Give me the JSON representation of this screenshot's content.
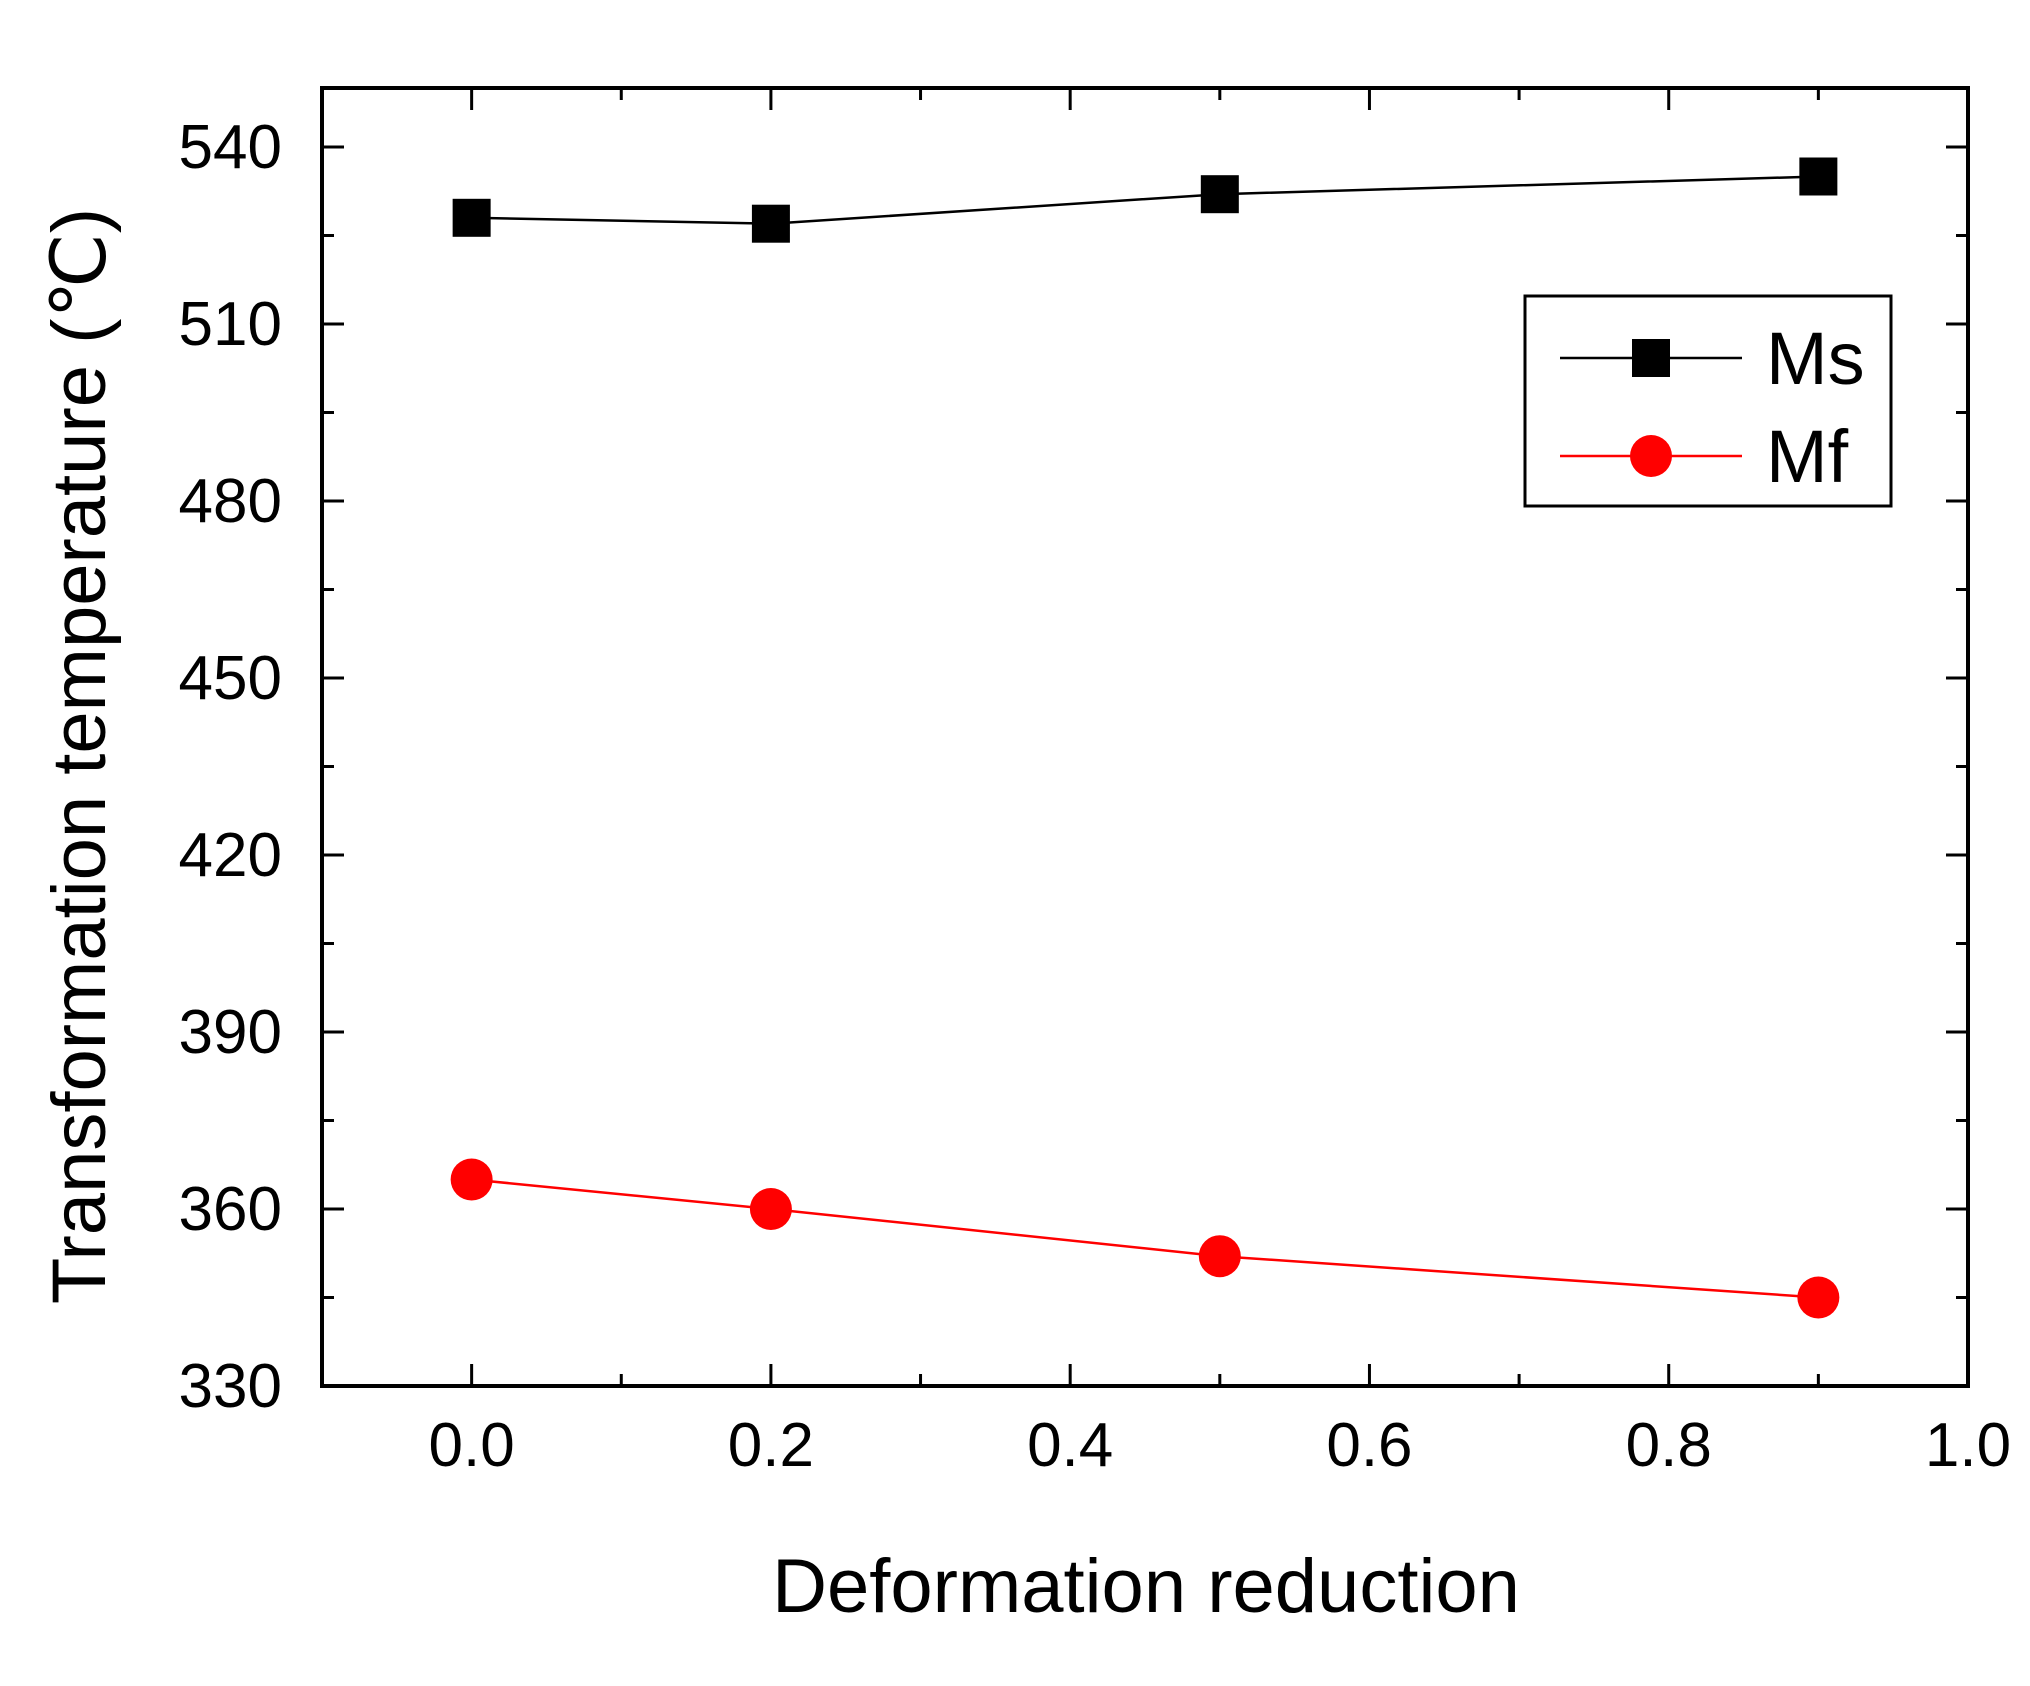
{
  "chart_data": {
    "type": "line",
    "title": "",
    "xlabel": "Deformation reduction",
    "ylabel": "Transformation temperature (℃)",
    "xlim": [
      -0.1,
      1.0
    ],
    "ylim": [
      330,
      550
    ],
    "xticks": [
      0.0,
      0.2,
      0.4,
      0.6,
      0.8,
      1.0
    ],
    "xtick_labels": [
      "0.0",
      "0.2",
      "0.4",
      "0.6",
      "0.8",
      "1.0"
    ],
    "yticks": [
      330,
      360,
      390,
      420,
      450,
      480,
      510,
      540
    ],
    "ytick_labels": [
      "330",
      "360",
      "390",
      "420",
      "450",
      "480",
      "510",
      "540"
    ],
    "x": [
      0.0,
      0.2,
      0.5,
      0.9
    ],
    "series": [
      {
        "name": "Ms",
        "color": "#000000",
        "marker": "square",
        "values": [
          528,
          527,
          532,
          535
        ]
      },
      {
        "name": "Mf",
        "color": "#ff0000",
        "marker": "circle",
        "values": [
          365,
          360,
          352,
          345
        ]
      }
    ],
    "grid": false,
    "legend_position": "top-right"
  }
}
